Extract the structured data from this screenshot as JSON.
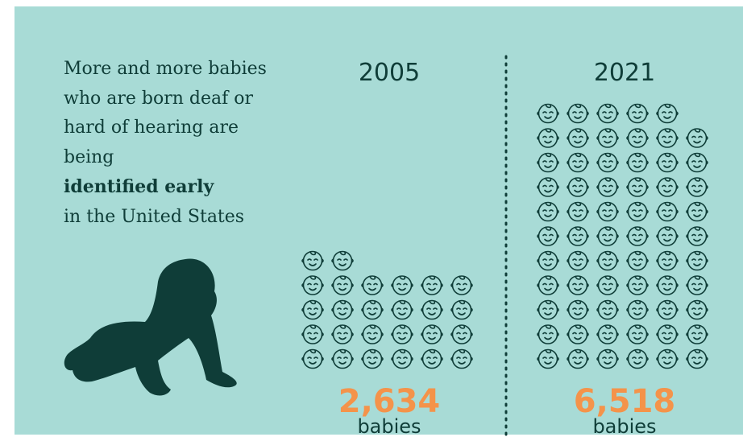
{
  "chart_data": {
    "type": "pictogram",
    "description": "More and more babies who are born deaf or hard of hearing are being",
    "emphasis": "identified early",
    "description_end": "in the United States",
    "categories": [
      "2005",
      "2021"
    ],
    "values": [
      2634,
      6518
    ],
    "value_labels": [
      "2,634",
      "6,518"
    ],
    "unit": "babies",
    "color": "#0f3d38",
    "label_color": "#f4934a"
  }
}
